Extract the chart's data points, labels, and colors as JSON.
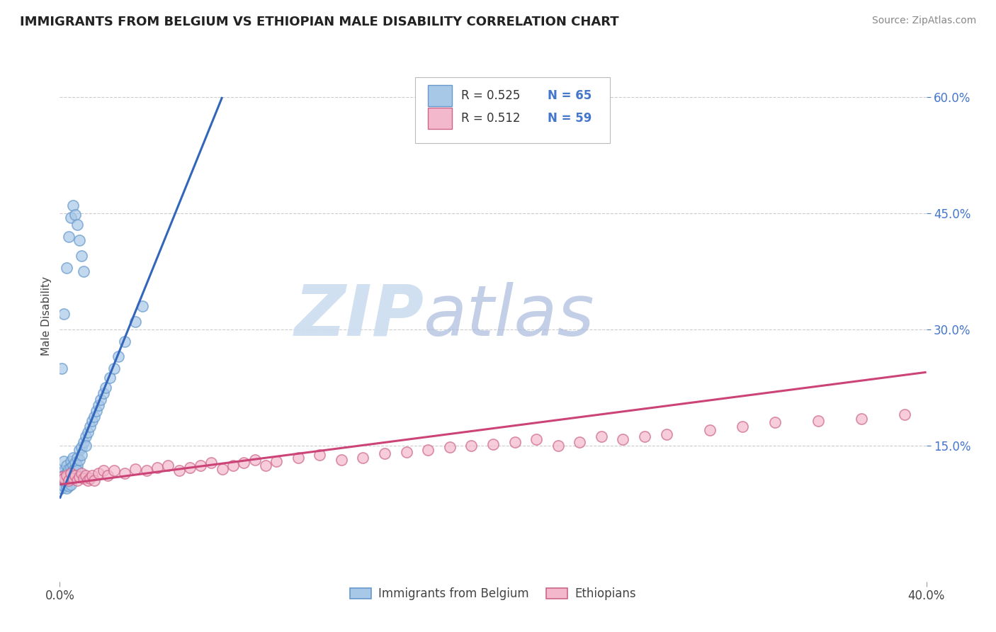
{
  "title": "IMMIGRANTS FROM BELGIUM VS ETHIOPIAN MALE DISABILITY CORRELATION CHART",
  "source": "Source: ZipAtlas.com",
  "ylabel": "Male Disability",
  "y_ticks": [
    0.15,
    0.3,
    0.45,
    0.6
  ],
  "y_tick_labels": [
    "15.0%",
    "30.0%",
    "45.0%",
    "60.0%"
  ],
  "x_lim": [
    0.0,
    0.4
  ],
  "y_lim": [
    -0.025,
    0.66
  ],
  "legend_r1": "R = 0.525",
  "legend_n1": "N = 65",
  "legend_r2": "R = 0.512",
  "legend_n2": "N = 59",
  "color_blue": "#a8c8e8",
  "color_blue_edge": "#6699cc",
  "color_pink": "#f4b8cc",
  "color_pink_edge": "#cc6688",
  "color_blue_line": "#3366bb",
  "color_pink_line": "#cc4477",
  "background_color": "#ffffff",
  "grid_color": "#cccccc",
  "blue_x": [
    0.001,
    0.001,
    0.001,
    0.002,
    0.002,
    0.002,
    0.002,
    0.002,
    0.003,
    0.003,
    0.003,
    0.003,
    0.003,
    0.004,
    0.004,
    0.004,
    0.004,
    0.005,
    0.005,
    0.005,
    0.005,
    0.005,
    0.006,
    0.006,
    0.006,
    0.006,
    0.007,
    0.007,
    0.007,
    0.008,
    0.008,
    0.008,
    0.009,
    0.009,
    0.01,
    0.01,
    0.011,
    0.012,
    0.012,
    0.013,
    0.014,
    0.015,
    0.016,
    0.017,
    0.018,
    0.019,
    0.02,
    0.021,
    0.023,
    0.025,
    0.027,
    0.03,
    0.035,
    0.038,
    0.001,
    0.002,
    0.003,
    0.004,
    0.005,
    0.006,
    0.007,
    0.008,
    0.009,
    0.01,
    0.011
  ],
  "blue_y": [
    0.115,
    0.105,
    0.095,
    0.13,
    0.118,
    0.112,
    0.108,
    0.098,
    0.125,
    0.115,
    0.108,
    0.1,
    0.095,
    0.12,
    0.112,
    0.105,
    0.098,
    0.13,
    0.122,
    0.115,
    0.108,
    0.1,
    0.135,
    0.125,
    0.118,
    0.11,
    0.128,
    0.12,
    0.112,
    0.135,
    0.125,
    0.118,
    0.145,
    0.132,
    0.148,
    0.138,
    0.155,
    0.162,
    0.15,
    0.168,
    0.175,
    0.182,
    0.188,
    0.195,
    0.202,
    0.21,
    0.218,
    0.225,
    0.238,
    0.25,
    0.265,
    0.285,
    0.31,
    0.33,
    0.25,
    0.32,
    0.38,
    0.42,
    0.445,
    0.46,
    0.448,
    0.435,
    0.415,
    0.395,
    0.375
  ],
  "pink_x": [
    0.001,
    0.002,
    0.003,
    0.004,
    0.005,
    0.006,
    0.007,
    0.008,
    0.009,
    0.01,
    0.011,
    0.012,
    0.013,
    0.014,
    0.015,
    0.016,
    0.018,
    0.02,
    0.022,
    0.025,
    0.03,
    0.035,
    0.04,
    0.045,
    0.05,
    0.055,
    0.06,
    0.065,
    0.07,
    0.075,
    0.08,
    0.085,
    0.09,
    0.095,
    0.1,
    0.11,
    0.12,
    0.13,
    0.14,
    0.15,
    0.16,
    0.17,
    0.18,
    0.19,
    0.2,
    0.21,
    0.22,
    0.23,
    0.24,
    0.25,
    0.26,
    0.27,
    0.28,
    0.3,
    0.315,
    0.33,
    0.35,
    0.37,
    0.39
  ],
  "pink_y": [
    0.11,
    0.108,
    0.112,
    0.105,
    0.115,
    0.108,
    0.112,
    0.105,
    0.11,
    0.115,
    0.108,
    0.112,
    0.105,
    0.108,
    0.112,
    0.105,
    0.115,
    0.118,
    0.112,
    0.118,
    0.115,
    0.12,
    0.118,
    0.122,
    0.125,
    0.118,
    0.122,
    0.125,
    0.128,
    0.12,
    0.125,
    0.128,
    0.132,
    0.125,
    0.13,
    0.135,
    0.138,
    0.132,
    0.135,
    0.14,
    0.142,
    0.145,
    0.148,
    0.15,
    0.152,
    0.155,
    0.158,
    0.15,
    0.155,
    0.162,
    0.158,
    0.162,
    0.165,
    0.17,
    0.175,
    0.18,
    0.182,
    0.185,
    0.19
  ],
  "blue_line_x0": 0.0,
  "blue_line_y0": 0.082,
  "blue_line_x1": 0.075,
  "blue_line_y1": 0.6,
  "pink_line_x0": 0.0,
  "pink_line_y0": 0.1,
  "pink_line_x1": 0.4,
  "pink_line_y1": 0.245
}
